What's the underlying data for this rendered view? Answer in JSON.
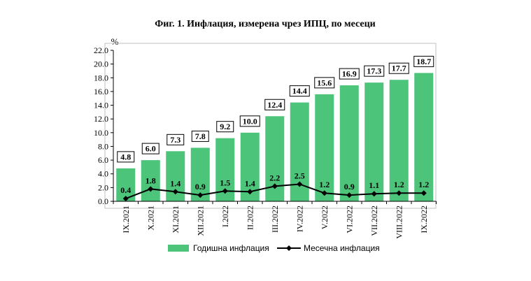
{
  "chart_data": {
    "type": "bar",
    "title": "Фиг. 1. Инфлация, измерена чрез ИПЦ, по месеци",
    "ylabel": "%",
    "ylim": [
      0,
      22
    ],
    "yticks": [
      "0.0",
      "2.0",
      "4.0",
      "6.0",
      "8.0",
      "10.0",
      "12.0",
      "14.0",
      "16.0",
      "18.0",
      "20.0",
      "22.0"
    ],
    "categories": [
      "IX.2021",
      "X.2021",
      "XI.2021",
      "XII.2021",
      "I.2022",
      "II.2022",
      "III.2022",
      "IV.2022",
      "V.2022",
      "VI.2022",
      "VII.2022",
      "VIII.2022",
      "IX.2022"
    ],
    "series": [
      {
        "name": "Годишна инфлация",
        "type": "bar",
        "color": "#4cc47a",
        "values": [
          4.8,
          6.0,
          7.3,
          7.8,
          9.2,
          10.0,
          12.4,
          14.4,
          15.6,
          16.9,
          17.3,
          17.7,
          18.7
        ],
        "labels": [
          "4.8",
          "6.0",
          "7.3",
          "7.8",
          "9.2",
          "10.0",
          "12.4",
          "14.4",
          "15.6",
          "16.9",
          "17.3",
          "17.7",
          "18.7"
        ]
      },
      {
        "name": "Месечна инфлация",
        "type": "line",
        "color": "#000000",
        "values": [
          0.4,
          1.8,
          1.4,
          0.9,
          1.5,
          1.4,
          2.2,
          2.5,
          1.2,
          0.9,
          1.1,
          1.2,
          1.2
        ],
        "labels": [
          "0.4",
          "1.8",
          "1.4",
          "0.9",
          "1.5",
          "1.4",
          "2.2",
          "2.5",
          "1.2",
          "0.9",
          "1.1",
          "1.2",
          "1.2"
        ]
      }
    ],
    "grid": false,
    "legend": "bottom"
  }
}
